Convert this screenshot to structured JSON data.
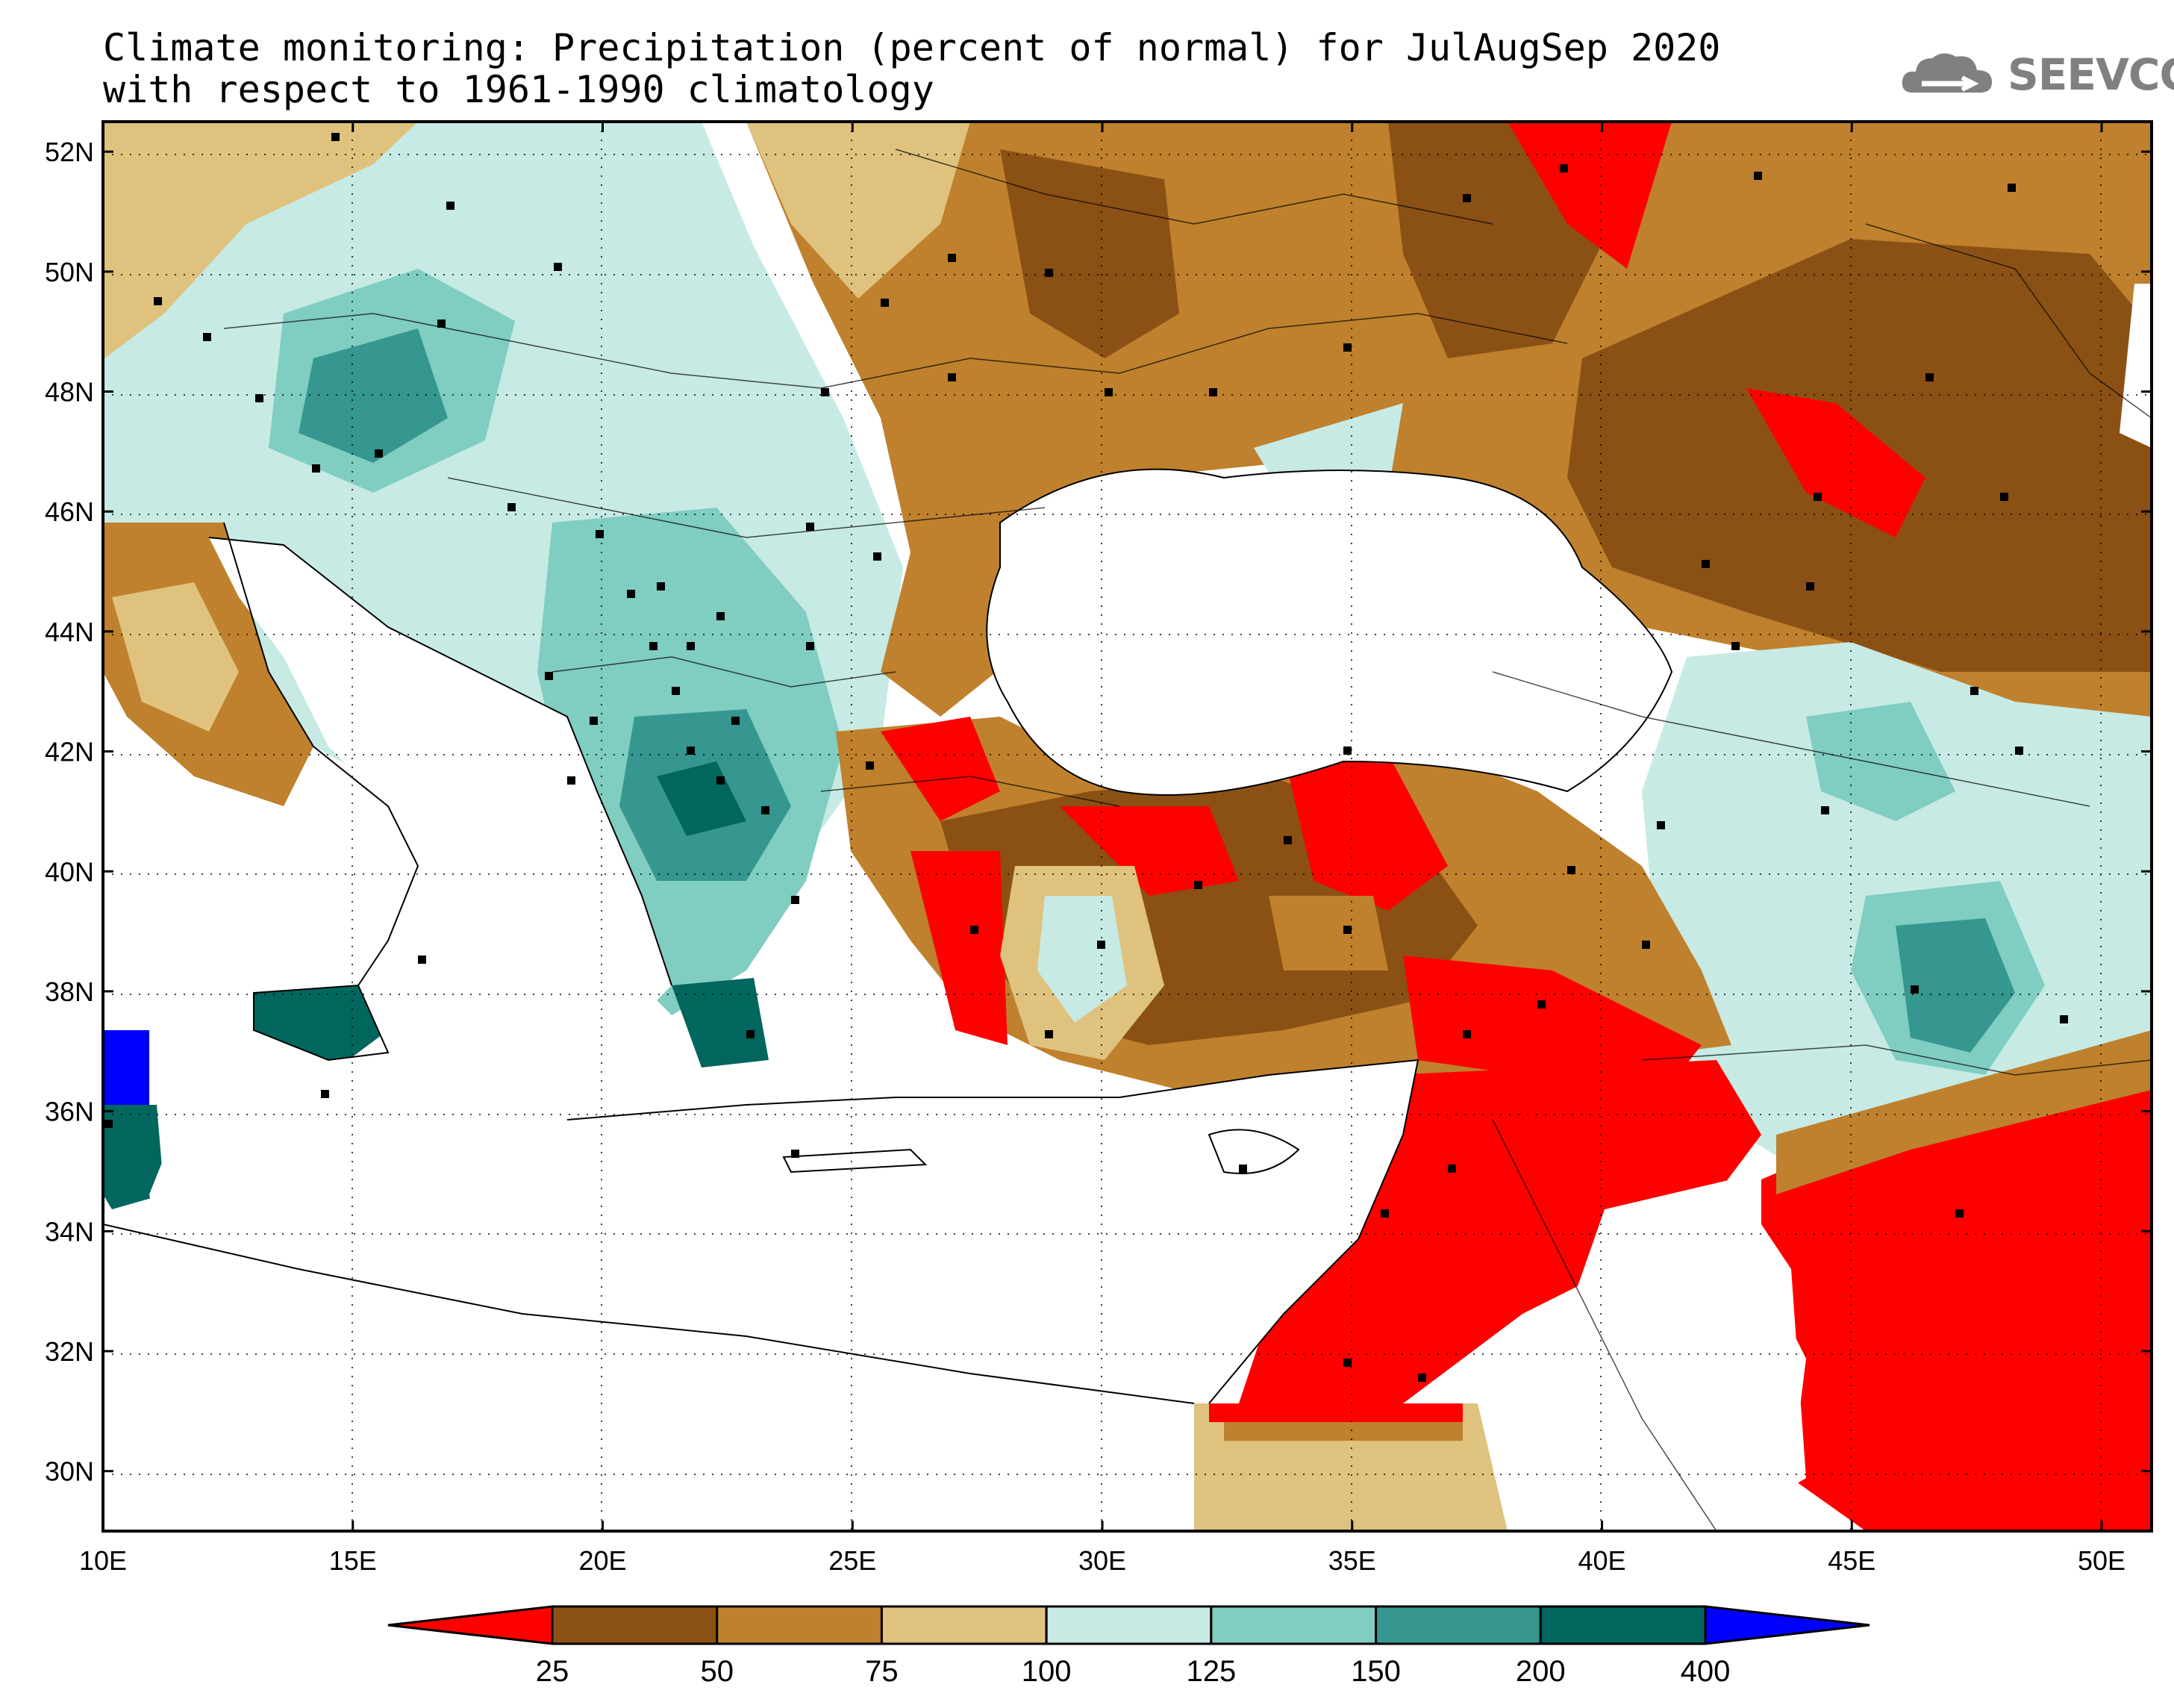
{
  "title": {
    "line1": "Climate monitoring: Precipitation (percent of normal) for JulAugSep 2020",
    "line2": "with respect to 1961-1990 climatology"
  },
  "logo": {
    "text": "SEEVCCC",
    "icon": "cloud-icon",
    "color": "#808080"
  },
  "map": {
    "lon_range": [
      10,
      51
    ],
    "lat_range": [
      29,
      52.5
    ],
    "lon_ticks": [
      {
        "value": 10,
        "label": "10E"
      },
      {
        "value": 15,
        "label": "15E"
      },
      {
        "value": 20,
        "label": "20E"
      },
      {
        "value": 25,
        "label": "25E"
      },
      {
        "value": 30,
        "label": "30E"
      },
      {
        "value": 35,
        "label": "35E"
      },
      {
        "value": 40,
        "label": "40E"
      },
      {
        "value": 45,
        "label": "45E"
      },
      {
        "value": 50,
        "label": "50E"
      }
    ],
    "lat_ticks": [
      {
        "value": 52,
        "label": "52N"
      },
      {
        "value": 50,
        "label": "50N"
      },
      {
        "value": 48,
        "label": "48N"
      },
      {
        "value": 46,
        "label": "46N"
      },
      {
        "value": 44,
        "label": "44N"
      },
      {
        "value": 42,
        "label": "42N"
      },
      {
        "value": 40,
        "label": "40N"
      },
      {
        "value": 38,
        "label": "38N"
      },
      {
        "value": 36,
        "label": "36N"
      },
      {
        "value": 34,
        "label": "34N"
      },
      {
        "value": 32,
        "label": "32N"
      },
      {
        "value": 30,
        "label": "30N"
      }
    ],
    "grid": "dotted"
  },
  "colorbar": {
    "colors": [
      "#ff0000",
      "#8b5114",
      "#bf812d",
      "#dfc27d",
      "#c7eae5",
      "#80cdc1",
      "#35978f",
      "#01665e",
      "#0000ff"
    ],
    "labels": [
      "25",
      "50",
      "75",
      "100",
      "125",
      "150",
      "200",
      "400"
    ]
  }
}
